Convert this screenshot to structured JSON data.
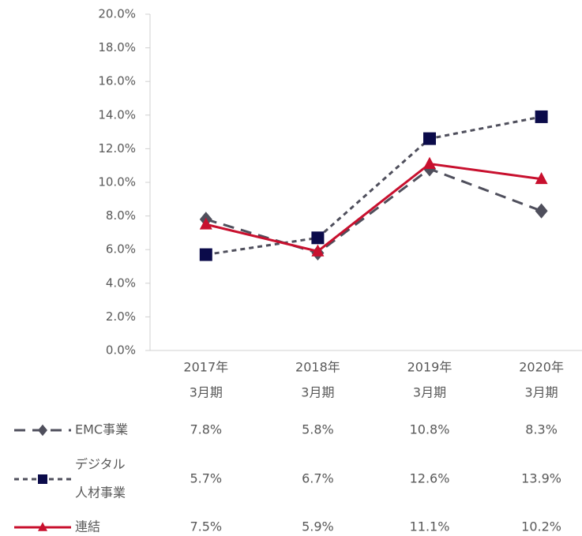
{
  "chart_data": {
    "type": "line",
    "categories": [
      [
        "2017年",
        "3月期"
      ],
      [
        "2018年",
        "3月期"
      ],
      [
        "2019年",
        "3月期"
      ],
      [
        "2020年",
        "3月期"
      ]
    ],
    "series": [
      {
        "name": [
          "EMC事業"
        ],
        "color": "#4f4f5c",
        "marker_color": "#4f4f5c",
        "marker": "diamond",
        "dash": "long",
        "values": [
          7.8,
          5.8,
          10.8,
          8.3
        ],
        "value_labels": [
          "7.8%",
          "5.8%",
          "10.8%",
          "8.3%"
        ]
      },
      {
        "name": [
          "デジタル",
          "人材事業"
        ],
        "color": "#4f4f5c",
        "marker_color": "#0b0b4a",
        "marker": "square",
        "dash": "short",
        "values": [
          5.7,
          6.7,
          12.6,
          13.9
        ],
        "value_labels": [
          "5.7%",
          "6.7%",
          "12.6%",
          "13.9%"
        ]
      },
      {
        "name": [
          "連結"
        ],
        "color": "#c8102e",
        "marker_color": "#c8102e",
        "marker": "triangle",
        "dash": "solid",
        "values": [
          7.5,
          5.9,
          11.1,
          10.2
        ],
        "value_labels": [
          "7.5%",
          "5.9%",
          "11.1%",
          "10.2%"
        ]
      }
    ],
    "ylim": [
      0,
      20
    ],
    "yticks": [
      {
        "value": 0,
        "label": "0.0%"
      },
      {
        "value": 2,
        "label": "2.0%"
      },
      {
        "value": 4,
        "label": "4.0%"
      },
      {
        "value": 6,
        "label": "6.0%"
      },
      {
        "value": 8,
        "label": "8.0%"
      },
      {
        "value": 10,
        "label": "10.0%"
      },
      {
        "value": 12,
        "label": "12.0%"
      },
      {
        "value": 14,
        "label": "14.0%"
      },
      {
        "value": 16,
        "label": "16.0%"
      },
      {
        "value": 18,
        "label": "18.0%"
      },
      {
        "value": 20,
        "label": "20.0%"
      }
    ],
    "grid": false
  }
}
